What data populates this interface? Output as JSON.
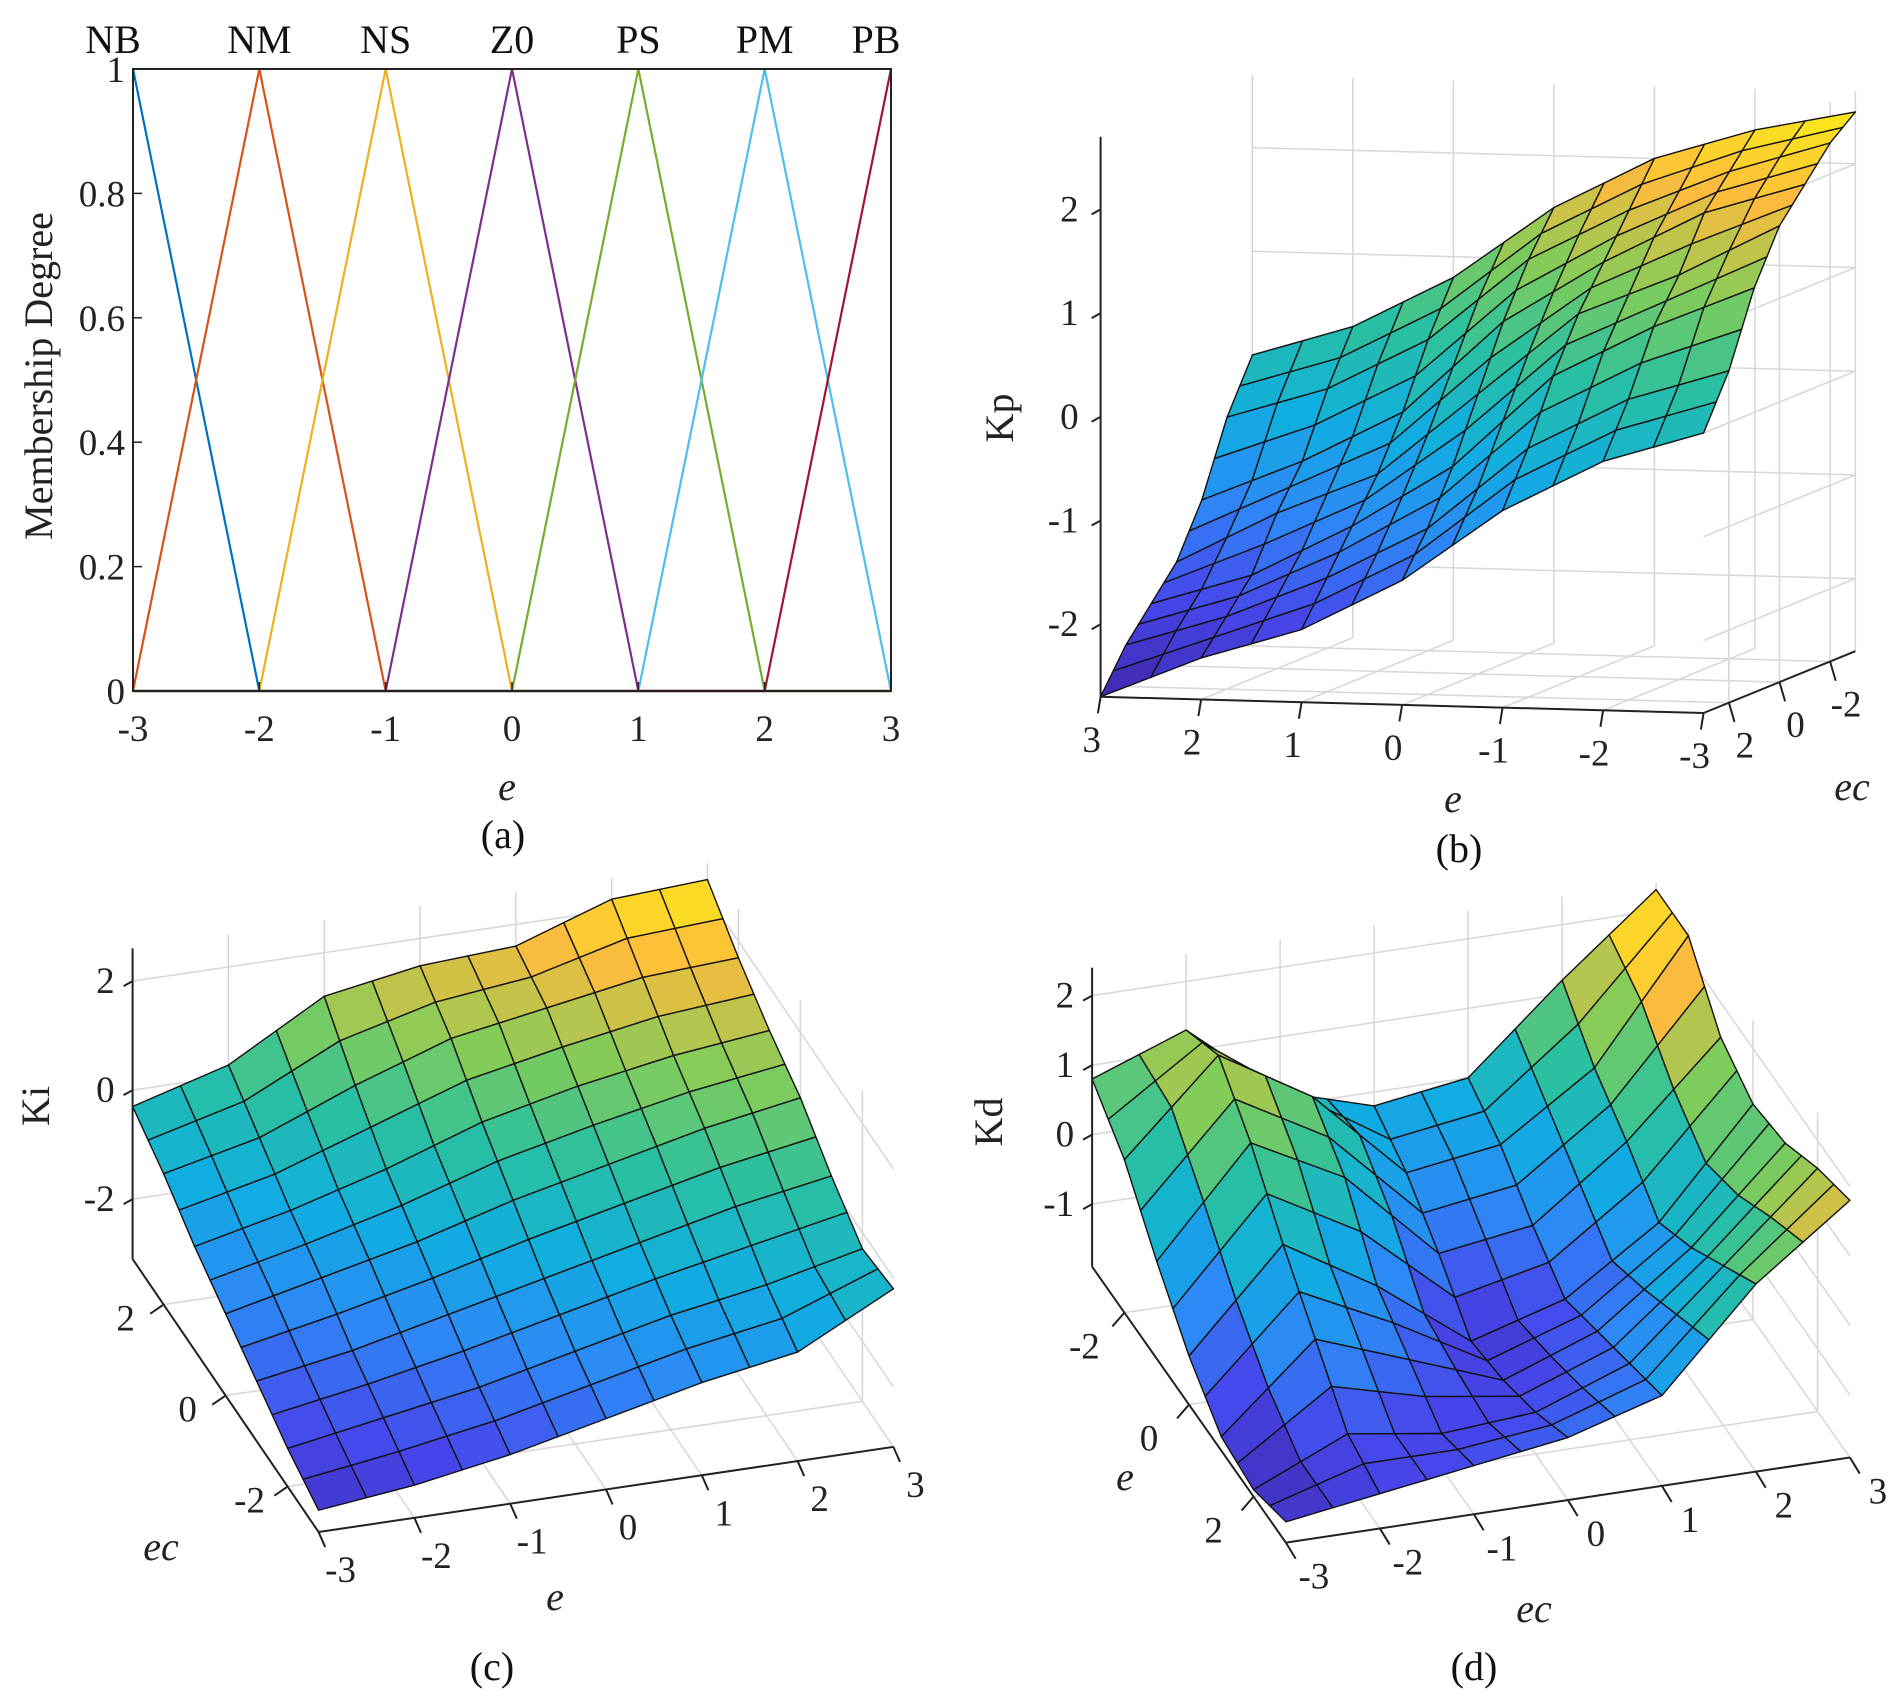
{
  "chart_data": [
    {
      "type": "line",
      "caption": "(a)",
      "title": "",
      "xlabel": "e",
      "ylabel": "Membership Degree",
      "xlim": [
        -3,
        3
      ],
      "ylim": [
        0,
        1
      ],
      "xticks": [
        -3,
        -2,
        -1,
        0,
        1,
        2,
        3
      ],
      "yticks": [
        0,
        0.2,
        0.4,
        0.6,
        0.8,
        1
      ],
      "grid": false,
      "series": [
        {
          "name": "NB",
          "color": "#0072BD",
          "x": [
            -3,
            -2,
            3
          ],
          "y": [
            1,
            0,
            0
          ]
        },
        {
          "name": "NM",
          "color": "#D95319",
          "x": [
            -3,
            -2,
            -1,
            3
          ],
          "y": [
            0,
            1,
            0,
            0
          ]
        },
        {
          "name": "NS",
          "color": "#EDB120",
          "x": [
            -3,
            -2,
            -1,
            0,
            3
          ],
          "y": [
            0,
            0,
            1,
            0,
            0
          ]
        },
        {
          "name": "Z0",
          "color": "#7E2F8E",
          "x": [
            -3,
            -1,
            0,
            1,
            3
          ],
          "y": [
            0,
            0,
            1,
            0,
            0
          ]
        },
        {
          "name": "PS",
          "color": "#77AC30",
          "x": [
            -3,
            0,
            1,
            2,
            3
          ],
          "y": [
            0,
            0,
            1,
            0,
            0
          ]
        },
        {
          "name": "PM",
          "color": "#4DBEEE",
          "x": [
            -3,
            1,
            2,
            3
          ],
          "y": [
            0,
            0,
            1,
            0
          ]
        },
        {
          "name": "PB",
          "color": "#A2142F",
          "x": [
            -3,
            2,
            3
          ],
          "y": [
            0,
            0,
            1
          ]
        }
      ]
    },
    {
      "type": "surface",
      "caption": "(b)",
      "xlabel": "e",
      "ylabel": "ec",
      "zlabel": "Kp",
      "x": [
        -3,
        -2,
        -1,
        0,
        1,
        2,
        3
      ],
      "y": [
        -3,
        -2,
        -1,
        0,
        1,
        2,
        3
      ],
      "zlim": [
        -2.7,
        2.7
      ],
      "xticks": [
        -3,
        -2,
        -1,
        0,
        1,
        2,
        3
      ],
      "yticks": [
        -2,
        0,
        2
      ],
      "zticks": [
        -2,
        -1,
        0,
        1,
        2
      ],
      "z": [
        [
          2.5,
          2.3,
          2.0,
          1.7,
          1.2,
          0.5,
          0.0
        ],
        [
          2.3,
          2.0,
          1.7,
          1.2,
          0.8,
          0.2,
          -0.3
        ],
        [
          2.0,
          1.6,
          1.2,
          0.8,
          0.3,
          -0.3,
          -0.8
        ],
        [
          1.5,
          1.1,
          0.6,
          0.0,
          -0.6,
          -1.1,
          -1.5
        ],
        [
          0.8,
          0.3,
          -0.3,
          -0.8,
          -1.2,
          -1.6,
          -2.0
        ],
        [
          0.3,
          -0.2,
          -0.8,
          -1.2,
          -1.7,
          -2.0,
          -2.3
        ],
        [
          0.0,
          -0.5,
          -1.2,
          -1.7,
          -2.0,
          -2.3,
          -2.7
        ]
      ]
    },
    {
      "type": "surface",
      "caption": "(c)",
      "xlabel": "e",
      "ylabel": "ec",
      "zlabel": "Ki",
      "x": [
        -3,
        -2,
        -1,
        0,
        1,
        2,
        3
      ],
      "y": [
        -3,
        -2,
        -1,
        0,
        1,
        2,
        3
      ],
      "zlim": [
        -3.1,
        2.6
      ],
      "xticks": [
        -3,
        -2,
        -1,
        0,
        1,
        2,
        3
      ],
      "yticks": [
        -2,
        0,
        2
      ],
      "zticks": [
        -2,
        0,
        2
      ],
      "z": [
        [
          -2.7,
          -2.4,
          -2.0,
          -1.6,
          -1.2,
          -0.7,
          -0.3
        ],
        [
          -2.5,
          -2.1,
          -1.7,
          -1.2,
          -0.8,
          -0.3,
          0.2
        ],
        [
          -2.2,
          -1.8,
          -1.3,
          -0.8,
          -0.3,
          0.4,
          1.2
        ],
        [
          -1.8,
          -1.4,
          -0.9,
          -0.3,
          0.3,
          1.0,
          1.5
        ],
        [
          -1.4,
          -1.0,
          -0.5,
          0.1,
          0.7,
          1.3,
          1.6
        ],
        [
          -1.1,
          -0.7,
          -0.1,
          0.5,
          1.0,
          1.6,
          2.2
        ],
        [
          -0.2,
          -0.3,
          0.2,
          0.8,
          1.2,
          1.7,
          2.3
        ]
      ]
    },
    {
      "type": "surface",
      "caption": "(d)",
      "xlabel": "e",
      "ylabel": "ec",
      "zlabel": "Kd",
      "x": [
        -3,
        -2,
        -1,
        0,
        1,
        2,
        3
      ],
      "y": [
        -3,
        -2,
        -1,
        0,
        1,
        2,
        3
      ],
      "zlim": [
        -1.9,
        2.4
      ],
      "xticks": [
        -2,
        0,
        2
      ],
      "yticks": [
        -3,
        -2,
        -1,
        0,
        1,
        2,
        3
      ],
      "zticks": [
        -1,
        0,
        1,
        2
      ],
      "z": [
        [
          0.8,
          1.3,
          0.2,
          -0.2,
          0.0,
          1.2,
          2.3
        ],
        [
          0.3,
          1.6,
          0.8,
          -0.5,
          -0.3,
          0.6,
          2.3
        ],
        [
          -0.5,
          1.0,
          0.3,
          -1.0,
          -0.8,
          0.2,
          1.5
        ],
        [
          -1.2,
          0.2,
          -0.6,
          -1.6,
          -1.2,
          -0.3,
          1.2
        ],
        [
          -1.7,
          -0.5,
          -1.0,
          -1.5,
          -1.0,
          0.0,
          1.3
        ],
        [
          -1.8,
          -1.2,
          -1.4,
          -1.3,
          -0.8,
          0.4,
          1.6
        ],
        [
          -1.6,
          -1.4,
          -1.2,
          -1.0,
          -0.6,
          0.8,
          1.8
        ]
      ]
    }
  ]
}
